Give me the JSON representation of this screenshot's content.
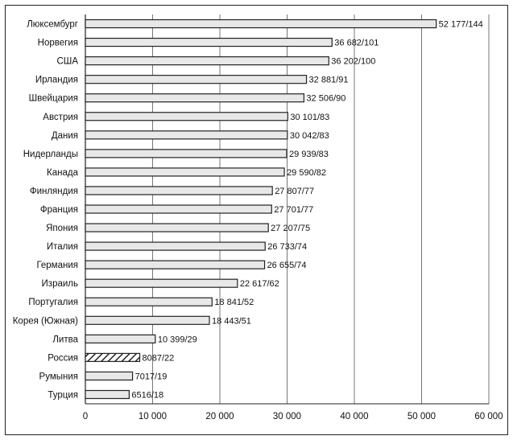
{
  "chart_data": {
    "type": "bar",
    "orientation": "horizontal",
    "categories": [
      "Люксембург",
      "Норвегия",
      "США",
      "Ирландия",
      "Швейцария",
      "Австрия",
      "Дания",
      "Нидерланды",
      "Канада",
      "Финляндия",
      "Франция",
      "Япония",
      "Италия",
      "Германия",
      "Израиль",
      "Португалия",
      "Корея (Южная)",
      "Литва",
      "Россия",
      "Румыния",
      "Турция"
    ],
    "values": [
      52177,
      36682,
      36202,
      32881,
      32506,
      30101,
      30042,
      29939,
      29590,
      27807,
      27701,
      27207,
      26733,
      26655,
      22617,
      18841,
      18443,
      10399,
      8087,
      7017,
      6516
    ],
    "value_labels": [
      "52 177/144",
      "36 682/101",
      "36 202/100",
      "32 881/91",
      "32 506/90",
      "30 101/83",
      "30 042/83",
      "29 939/83",
      "29 590/82",
      "27 807/77",
      "27 701/77",
      "27 207/75",
      "26 733/74",
      "26 655/74",
      "22 617/62",
      "18 841/52",
      "18 443/51",
      "10 399/29",
      "8087/22",
      "7017/19",
      "6516/18"
    ],
    "highlight_category": "Россия",
    "xlim": [
      0,
      60000
    ],
    "xticks": [
      0,
      10000,
      20000,
      30000,
      40000,
      50000,
      60000
    ],
    "xtick_labels": [
      "0",
      "10 000",
      "20 000",
      "30 000",
      "40 000",
      "50 000",
      "60 000"
    ],
    "grid": "vertical",
    "colors": {
      "bar_fill": "#e8e8e8",
      "bar_stroke": "#222222",
      "grid": "#555555",
      "highlight_hatch": "#222222"
    }
  }
}
